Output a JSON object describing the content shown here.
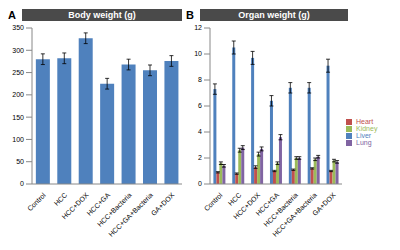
{
  "chart_data": [
    {
      "type": "bar",
      "title": "Body weight (g)",
      "annotations": [
        "A"
      ],
      "categories": [
        "Control",
        "HCC",
        "HCC+DOX",
        "HCC+GA",
        "HCC+Bacteria",
        "HCC+GA+Bacteria",
        "GA+DOX"
      ],
      "values": [
        280,
        282,
        327,
        225,
        268,
        255,
        276
      ],
      "errors": [
        12,
        12,
        12,
        12,
        12,
        12,
        12
      ],
      "color": "#4f81bd",
      "ylim": [
        0,
        350
      ],
      "yticks": [
        0,
        50,
        100,
        150,
        200,
        250,
        300,
        350
      ],
      "grid": false
    },
    {
      "type": "bar",
      "title": "Organ weight (g)",
      "annotations": [
        "B"
      ],
      "categories": [
        "Control",
        "HCC",
        "HCC+DOX",
        "HCC+GA",
        "HCC+Bacteria",
        "HCC+GA+Bacteria",
        "GA+DOX"
      ],
      "series": [
        {
          "name": "Liver",
          "color": "#4f81bd",
          "values": [
            7.3,
            10.5,
            9.7,
            6.4,
            7.4,
            7.4,
            9.1
          ],
          "errors": [
            0.4,
            0.5,
            0.5,
            0.4,
            0.4,
            0.4,
            0.5
          ]
        },
        {
          "name": "Heart",
          "color": "#c0504d",
          "values": [
            0.9,
            0.8,
            1.3,
            1.0,
            1.1,
            1.2,
            1.0
          ],
          "errors": [
            0.05,
            0.05,
            0.1,
            0.05,
            0.05,
            0.05,
            0.05
          ]
        },
        {
          "name": "Kidney",
          "color": "#9bbb59",
          "values": [
            1.6,
            2.6,
            2.3,
            1.6,
            2.0,
            1.9,
            1.8
          ],
          "errors": [
            0.1,
            0.15,
            0.15,
            0.1,
            0.1,
            0.1,
            0.1
          ]
        },
        {
          "name": "Lung",
          "color": "#8064a2",
          "values": [
            1.4,
            2.8,
            2.7,
            3.6,
            2.0,
            2.1,
            1.7
          ],
          "errors": [
            0.1,
            0.15,
            0.15,
            0.2,
            0.1,
            0.1,
            0.1
          ]
        }
      ],
      "ylim": [
        0,
        12
      ],
      "yticks": [
        0,
        2,
        4,
        6,
        8,
        10,
        12
      ],
      "grid": false,
      "legend": "right"
    }
  ]
}
